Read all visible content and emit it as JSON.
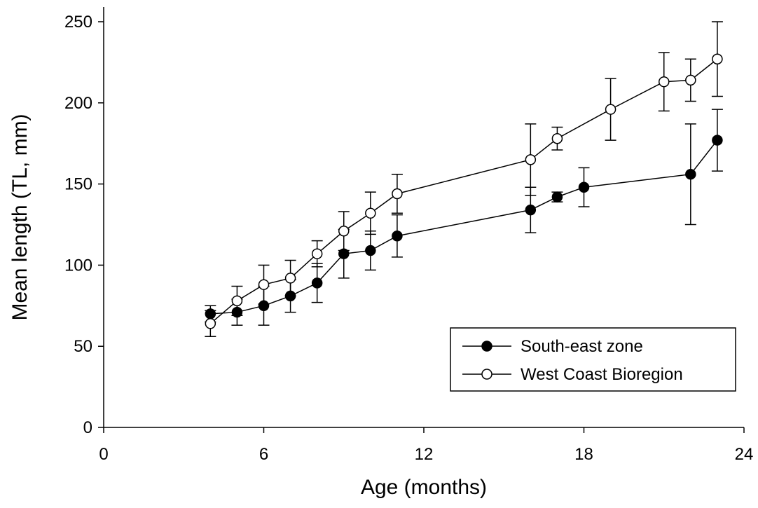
{
  "chart_data": {
    "type": "line",
    "title": "",
    "xlabel": "Age (months)",
    "ylabel": "Mean length (TL, mm)",
    "xlim": [
      0,
      24
    ],
    "ylim": [
      0,
      250
    ],
    "xticks": [
      "0",
      "6",
      "12",
      "18",
      "24"
    ],
    "yticks": [
      "0",
      "50",
      "100",
      "150",
      "200",
      "250"
    ],
    "grid": false,
    "legend_position": "bottom-right",
    "series": [
      {
        "name": "South-east zone",
        "marker": "filled-circle",
        "color": "#000000",
        "points": [
          {
            "x": 4,
            "y": 70,
            "err": 5
          },
          {
            "x": 5,
            "y": 71,
            "err": 8
          },
          {
            "x": 6,
            "y": 75,
            "err": 12
          },
          {
            "x": 7,
            "y": 81,
            "err": 10
          },
          {
            "x": 8,
            "y": 89,
            "err": 12
          },
          {
            "x": 9,
            "y": 107,
            "err": 15
          },
          {
            "x": 10,
            "y": 109,
            "err": 12
          },
          {
            "x": 11,
            "y": 118,
            "err": 13
          },
          {
            "x": 16,
            "y": 134,
            "err": 14
          },
          {
            "x": 17,
            "y": 142,
            "err": 3
          },
          {
            "x": 18,
            "y": 148,
            "err": 12
          },
          {
            "x": 22,
            "y": 156,
            "err": 31
          },
          {
            "x": 23,
            "y": 177,
            "err": 19
          }
        ]
      },
      {
        "name": "West Coast Bioregion",
        "marker": "open-circle",
        "color": "#000000",
        "points": [
          {
            "x": 4,
            "y": 64,
            "err": 8
          },
          {
            "x": 5,
            "y": 78,
            "err": 9
          },
          {
            "x": 6,
            "y": 88,
            "err": 12
          },
          {
            "x": 7,
            "y": 92,
            "err": 11
          },
          {
            "x": 8,
            "y": 107,
            "err": 8
          },
          {
            "x": 9,
            "y": 121,
            "err": 12
          },
          {
            "x": 10,
            "y": 132,
            "err": 13
          },
          {
            "x": 11,
            "y": 144,
            "err": 12
          },
          {
            "x": 16,
            "y": 165,
            "err": 22
          },
          {
            "x": 17,
            "y": 178,
            "err": 7
          },
          {
            "x": 19,
            "y": 196,
            "err": 19
          },
          {
            "x": 21,
            "y": 213,
            "err": 18
          },
          {
            "x": 22,
            "y": 214,
            "err": 13
          },
          {
            "x": 23,
            "y": 227,
            "err": 23
          }
        ]
      }
    ]
  }
}
